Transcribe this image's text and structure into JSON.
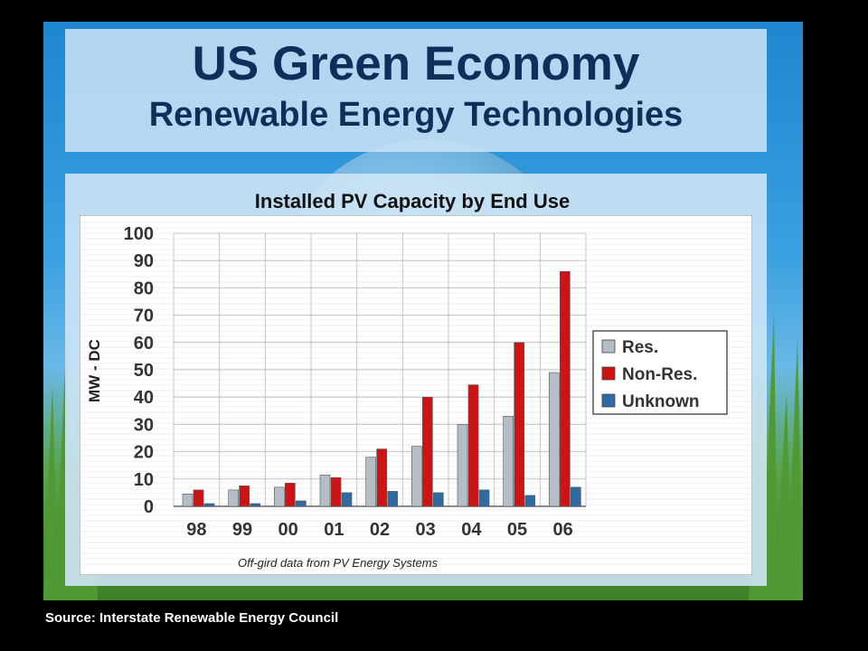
{
  "slide": {
    "title": "US Green Economy",
    "subtitle": "Renewable Energy Technologies",
    "source": "Source: Interstate Renewable Energy Council"
  },
  "colors": {
    "res": "#b5bdc7",
    "nonres": "#cc1414",
    "unknown": "#2f6aa3",
    "title": "#0f2e5a"
  },
  "chart_data": {
    "type": "bar",
    "title": "Installed PV Capacity by End Use",
    "ylabel": "MW - DC",
    "xlabel": "",
    "ylim": [
      0,
      100
    ],
    "yticks": [
      0,
      10,
      20,
      30,
      40,
      50,
      60,
      70,
      80,
      90,
      100
    ],
    "categories": [
      "98",
      "99",
      "00",
      "01",
      "02",
      "03",
      "04",
      "05",
      "06"
    ],
    "series": [
      {
        "name": "Res.",
        "color": "#b5bdc7",
        "values": [
          4.5,
          6,
          7,
          11.5,
          18,
          22,
          30,
          33,
          49
        ]
      },
      {
        "name": "Non-Res.",
        "color": "#cc1414",
        "values": [
          6,
          7.5,
          8.5,
          10.5,
          21,
          40,
          44.5,
          60,
          86
        ]
      },
      {
        "name": "Unknown",
        "color": "#2f6aa3",
        "values": [
          1,
          1,
          2,
          5,
          5.5,
          5,
          6,
          4,
          7
        ]
      }
    ],
    "legend_position": "right",
    "grid": true,
    "footnote": "Off-gird data from PV Energy Systems"
  }
}
